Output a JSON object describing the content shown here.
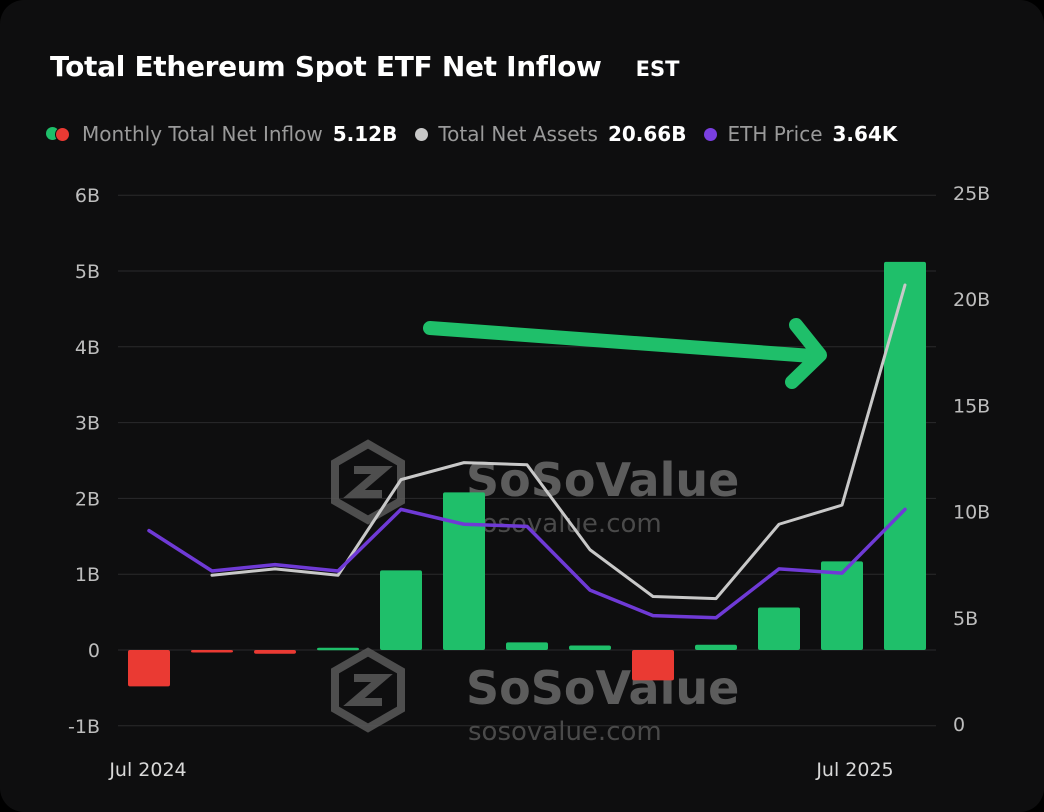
{
  "title": "Total Ethereum Spot ETF Net Inflow",
  "timezone": "EST",
  "legend": [
    {
      "label": "Monthly Total Net Inflow",
      "value": "5.12B",
      "icon": "green-red-dot-icon"
    },
    {
      "label": "Total Net Assets",
      "value": "20.66B",
      "icon": "gray-dot-icon",
      "color": "#c8c8c8"
    },
    {
      "label": "ETH Price",
      "value": "3.64K",
      "icon": "purple-dot-icon",
      "color": "#7a3fe0"
    }
  ],
  "watermark": {
    "brand": "SoSoValue",
    "url": "sosovalue.com"
  },
  "colors": {
    "positive": "#1fbf6a",
    "negative": "#ea3a33",
    "assets_line": "#c8c8c8",
    "price_line": "#6f3ad6",
    "arrow": "#1fbf6a"
  },
  "chart_data": {
    "type": "bar",
    "x_ticks": [
      "Jul 2024",
      "Jul 2025"
    ],
    "y_left": {
      "ticks": [
        "6B",
        "5B",
        "4B",
        "3B",
        "2B",
        "1B",
        "0",
        "-1B"
      ],
      "range": [
        -1,
        6
      ],
      "unit": "B"
    },
    "y_right": {
      "ticks": [
        "25B",
        "20B",
        "15B",
        "10B",
        "5B",
        "0"
      ],
      "range": [
        0,
        25
      ],
      "unit": "B"
    },
    "grid": true,
    "series": [
      {
        "name": "Monthly Total Net Inflow",
        "kind": "bar",
        "axis": "left",
        "values": [
          -0.48,
          -0.01,
          -0.05,
          0.03,
          1.05,
          2.08,
          0.1,
          0.06,
          -0.4,
          0.07,
          0.56,
          1.17,
          5.12
        ]
      },
      {
        "name": "Total Net Assets",
        "kind": "line",
        "axis": "right",
        "values": [
          null,
          7.0,
          7.3,
          7.0,
          11.5,
          12.3,
          12.2,
          8.2,
          6.0,
          5.9,
          9.4,
          10.3,
          20.66
        ]
      },
      {
        "name": "ETH Price",
        "kind": "line",
        "axis": "right",
        "values": [
          9.1,
          7.2,
          7.5,
          7.2,
          10.1,
          9.4,
          9.3,
          6.3,
          5.1,
          5.0,
          7.3,
          7.1,
          10.1
        ]
      }
    ],
    "annotation": "green arrow pointing to the last bar"
  }
}
